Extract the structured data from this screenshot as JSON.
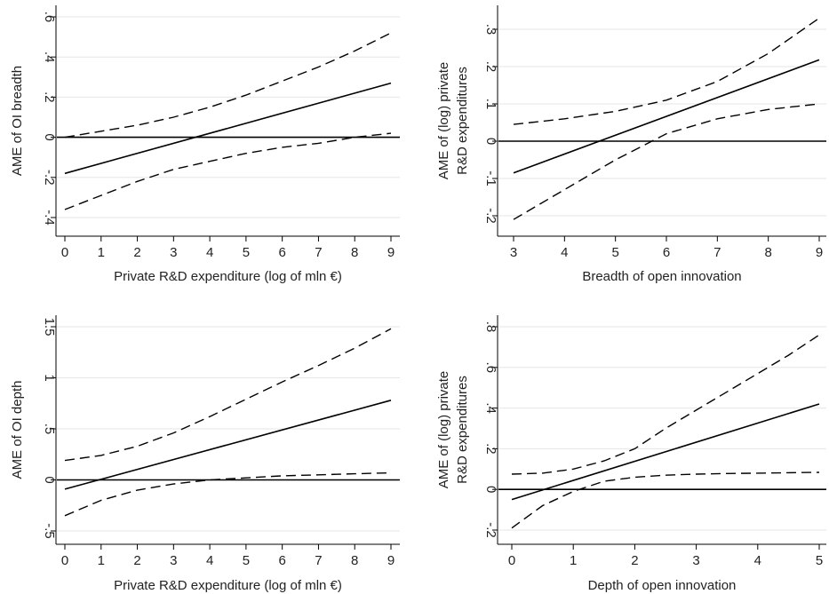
{
  "chart_data": [
    {
      "type": "line",
      "ylabel": [
        "AME of OI breadth"
      ],
      "xlabel": "Private R&D expenditure (log of mln €)",
      "xlim": [
        0,
        9
      ],
      "ylim": [
        -0.4,
        0.6
      ],
      "xticks": [
        0,
        1,
        2,
        3,
        4,
        5,
        6,
        7,
        8,
        9
      ],
      "xtick_labels": [
        "0",
        "1",
        "2",
        "3",
        "4",
        "5",
        "6",
        "7",
        "8",
        "9"
      ],
      "yticks": [
        -0.4,
        -0.2,
        0,
        0.2,
        0.4,
        0.6
      ],
      "ytick_labels": [
        "-.4",
        "-.2",
        "0",
        ".2",
        ".4",
        ".6"
      ],
      "grid": true,
      "reference_line": 0,
      "series": [
        {
          "style": "solid",
          "x": [
            0,
            9
          ],
          "values": [
            -0.18,
            0.27
          ]
        },
        {
          "style": "dashed",
          "x": [
            0,
            1,
            2,
            3,
            4,
            5,
            6,
            7,
            8,
            9
          ],
          "values": [
            0.0,
            0.03,
            0.06,
            0.1,
            0.15,
            0.21,
            0.28,
            0.35,
            0.43,
            0.52
          ]
        },
        {
          "style": "dashed",
          "x": [
            0,
            1,
            2,
            3,
            4,
            5,
            6,
            7,
            8,
            9
          ],
          "values": [
            -0.36,
            -0.29,
            -0.22,
            -0.16,
            -0.12,
            -0.08,
            -0.05,
            -0.03,
            -0.0,
            0.02
          ]
        }
      ]
    },
    {
      "type": "line",
      "ylabel": [
        "AME of (log) private",
        "R&D expenditures"
      ],
      "xlabel": "Breadth of open innovation",
      "xlim": [
        3,
        9
      ],
      "ylim": [
        -0.2,
        0.3
      ],
      "xticks": [
        3,
        4,
        5,
        6,
        7,
        8,
        9
      ],
      "xtick_labels": [
        "3",
        "4",
        "5",
        "6",
        "7",
        "8",
        "9"
      ],
      "yticks": [
        -0.2,
        -0.1,
        0,
        0.1,
        0.2,
        0.3
      ],
      "ytick_labels": [
        "-.2",
        "-.1",
        "0",
        ".1",
        ".2",
        ".3"
      ],
      "grid": true,
      "reference_line": 0,
      "series": [
        {
          "style": "solid",
          "x": [
            3,
            9
          ],
          "values": [
            -0.085,
            0.218
          ]
        },
        {
          "style": "dashed",
          "x": [
            3,
            4,
            5,
            6,
            7,
            8,
            9
          ],
          "values": [
            0.045,
            0.06,
            0.08,
            0.11,
            0.16,
            0.235,
            0.33
          ]
        },
        {
          "style": "dashed",
          "x": [
            3,
            4,
            5,
            6,
            7,
            8,
            9
          ],
          "values": [
            -0.21,
            -0.13,
            -0.05,
            0.02,
            0.06,
            0.085,
            0.1
          ]
        }
      ]
    },
    {
      "type": "line",
      "ylabel": [
        "AME of OI depth"
      ],
      "xlabel": "Private R&D expenditure (log of mln €)",
      "xlim": [
        0,
        9
      ],
      "ylim": [
        -0.5,
        1.5
      ],
      "xticks": [
        0,
        1,
        2,
        3,
        4,
        5,
        6,
        7,
        8,
        9
      ],
      "xtick_labels": [
        "0",
        "1",
        "2",
        "3",
        "4",
        "5",
        "6",
        "7",
        "8",
        "9"
      ],
      "yticks": [
        -0.5,
        0,
        0.5,
        1,
        1.5
      ],
      "ytick_labels": [
        "-.5",
        "0",
        ".5",
        "1",
        "1.5"
      ],
      "grid": true,
      "reference_line": 0,
      "series": [
        {
          "style": "solid",
          "x": [
            0,
            9
          ],
          "values": [
            -0.09,
            0.78
          ]
        },
        {
          "style": "dashed",
          "x": [
            0,
            1,
            2,
            3,
            4,
            5,
            6,
            7,
            8,
            9
          ],
          "values": [
            0.19,
            0.24,
            0.33,
            0.46,
            0.62,
            0.79,
            0.96,
            1.12,
            1.29,
            1.48
          ]
        },
        {
          "style": "dashed",
          "x": [
            0,
            1,
            2,
            3,
            4,
            5,
            6,
            7,
            8,
            9
          ],
          "values": [
            -0.35,
            -0.2,
            -0.1,
            -0.04,
            0.0,
            0.02,
            0.04,
            0.05,
            0.06,
            0.07
          ]
        }
      ]
    },
    {
      "type": "line",
      "ylabel": [
        "AME of (log) private",
        "R&D expenditures"
      ],
      "xlabel": "Depth of open innovation",
      "xlim": [
        0,
        5
      ],
      "ylim": [
        -0.2,
        0.8
      ],
      "xticks": [
        0,
        1,
        2,
        3,
        4,
        5
      ],
      "xtick_labels": [
        "0",
        "1",
        "2",
        "3",
        "4",
        "5"
      ],
      "yticks": [
        -0.2,
        0,
        0.2,
        0.4,
        0.6,
        0.8
      ],
      "ytick_labels": [
        "-.2",
        "0",
        ".2",
        ".4",
        ".6",
        ".8"
      ],
      "grid": true,
      "reference_line": 0,
      "series": [
        {
          "style": "solid",
          "x": [
            0,
            5
          ],
          "values": [
            -0.05,
            0.42
          ]
        },
        {
          "style": "dashed",
          "x": [
            0,
            0.5,
            1,
            1.5,
            2,
            2.5,
            3,
            3.5,
            4,
            4.5,
            5
          ],
          "values": [
            0.075,
            0.08,
            0.1,
            0.14,
            0.2,
            0.3,
            0.39,
            0.48,
            0.57,
            0.66,
            0.76
          ]
        },
        {
          "style": "dashed",
          "x": [
            0,
            0.5,
            1,
            1.5,
            2,
            2.5,
            3,
            3.5,
            4,
            4.5,
            5
          ],
          "values": [
            -0.19,
            -0.08,
            -0.01,
            0.04,
            0.06,
            0.07,
            0.075,
            0.078,
            0.08,
            0.082,
            0.084
          ]
        }
      ]
    }
  ]
}
